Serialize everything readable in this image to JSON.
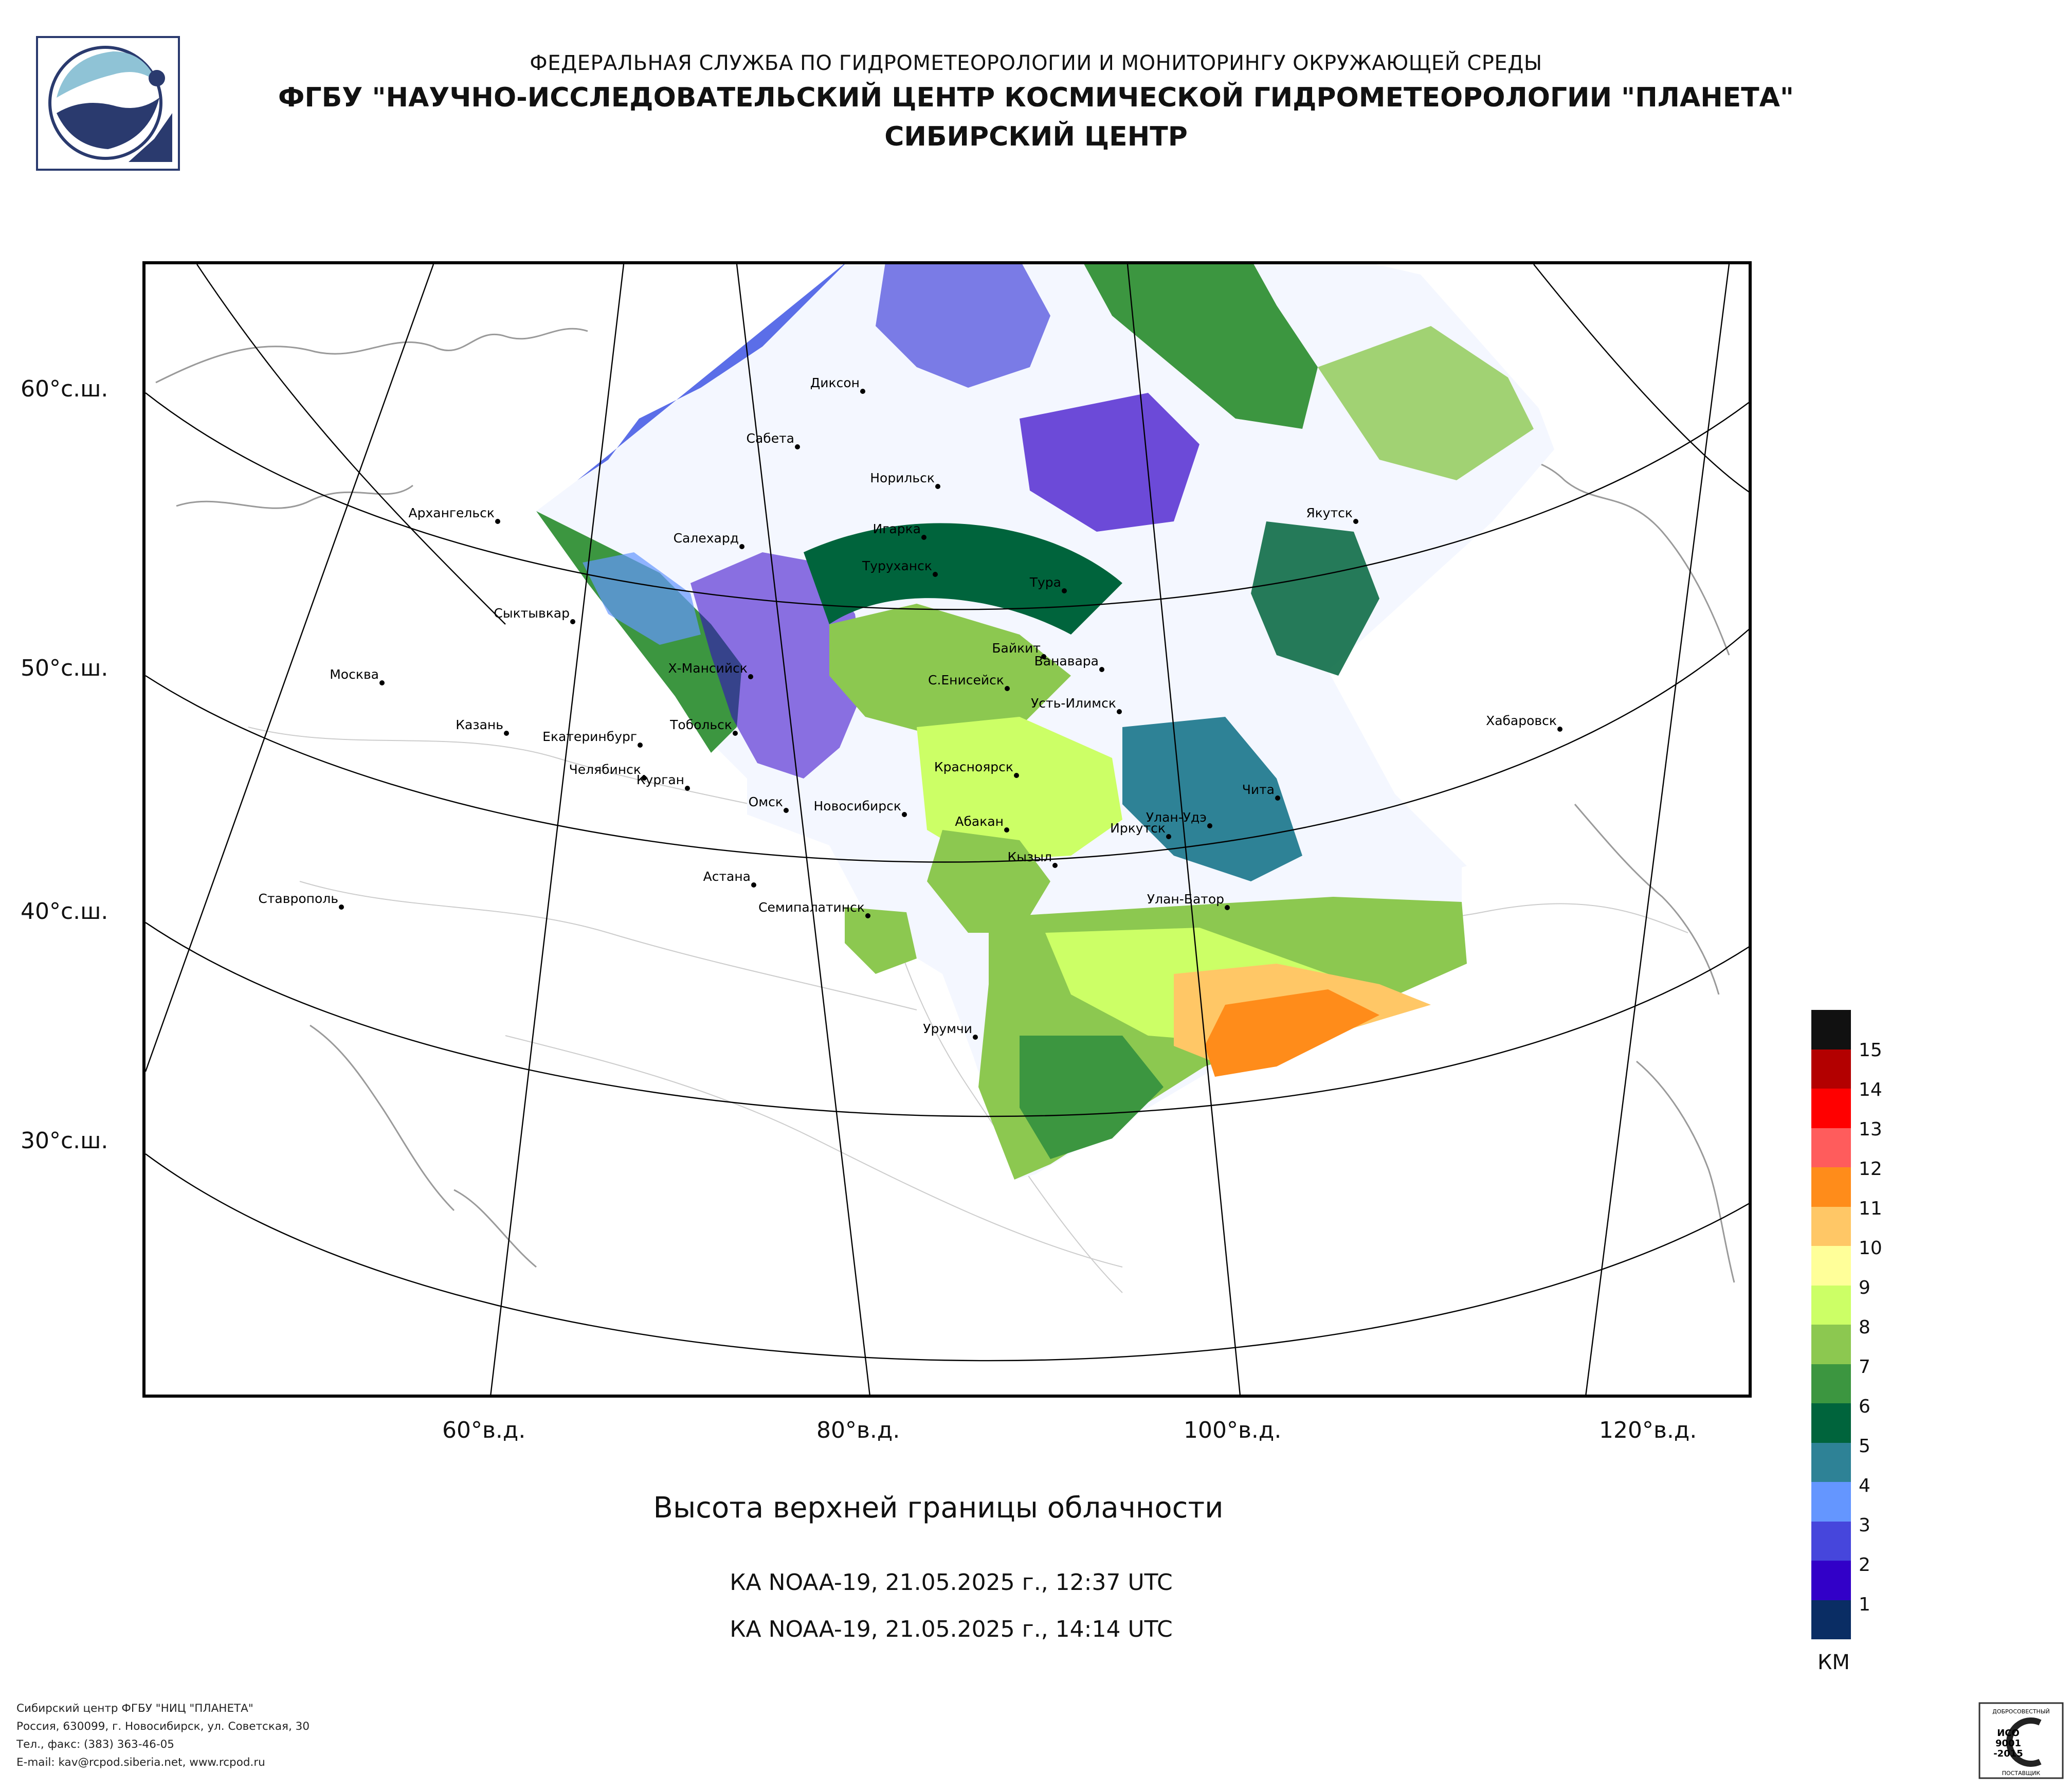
{
  "header": {
    "line1": "ФЕДЕРАЛЬНАЯ СЛУЖБА ПО ГИДРОМЕТЕОРОЛОГИИ И МОНИТОРИНГУ ОКРУЖАЮЩЕЙ СРЕДЫ",
    "line2": "ФГБУ \"НАУЧНО-ИССЛЕДОВАТЕЛЬСКИЙ ЦЕНТР КОСМИЧЕСКОЙ ГИДРОМЕТЕОРОЛОГИИ \"ПЛАНЕТА\"",
    "line3": "СИБИРСКИЙ ЦЕНТР"
  },
  "map": {
    "lat_labels": [
      "60°с.ш.",
      "50°с.ш.",
      "40°с.ш.",
      "30°с.ш."
    ],
    "lon_labels": [
      "60°в.д.",
      "80°в.д.",
      "100°в.д.",
      "120°в.д."
    ],
    "cities": [
      "Диксон",
      "Сабета",
      "Норильск",
      "Архангельск",
      "Салехард",
      "Игарка",
      "Туруханск",
      "Тура",
      "Якутск",
      "Сыктывкар",
      "Байкит",
      "Ванавара",
      "Москва",
      "Х-Мансийск",
      "С.Енисейск",
      "Усть-Илимск",
      "Казань",
      "Тобольск",
      "Екатеринбург",
      "Хабаровск",
      "Челябинск",
      "Курган",
      "Красноярск",
      "Чита",
      "Омск",
      "Новосибирск",
      "Абакан",
      "Улан-Удэ",
      "Иркутск",
      "Кызыл",
      "Астана",
      "Ставрополь",
      "Семипалатинск",
      "Улан-Батор",
      "Урумчи"
    ]
  },
  "title": "Высота верхней границы облачности",
  "passes": [
    "КА NOAA-19, 21.05.2025 г., 12:37 UTC",
    "КА NOAA-19, 21.05.2025 г., 14:14 UTC"
  ],
  "legend": {
    "units": "КМ",
    "ticks": [
      "15",
      "14",
      "13",
      "12",
      "11",
      "10",
      "9",
      "8",
      "7",
      "6",
      "5",
      "4",
      "3",
      "2",
      "1"
    ],
    "colors": [
      "#111111",
      "#b30000",
      "#ff0000",
      "#ff5c5c",
      "#ff8c1a",
      "#ffc766",
      "#ffff99",
      "#ccff66",
      "#8cc850",
      "#3c9640",
      "#00643c",
      "#2e8296",
      "#6496ff",
      "#4646dc",
      "#3200c8",
      "#0a2d64"
    ]
  },
  "footer": {
    "lines": [
      "Сибирский центр ФГБУ \"НИЦ \"ПЛАНЕТА\"",
      "Россия, 630099, г. Новосибирск, ул. Советская, 30",
      "Тел., факс: (383) 363-46-05",
      "E-mail: kav@rcpod.siberia.net, www.rcpod.ru"
    ]
  },
  "certificate": {
    "top": "ДОБРОСОВЕСТНЫЙ",
    "line1": "ИСО",
    "line2": "9001",
    "line3": "-2015",
    "bottom": "ПОСТАВЩИК"
  }
}
